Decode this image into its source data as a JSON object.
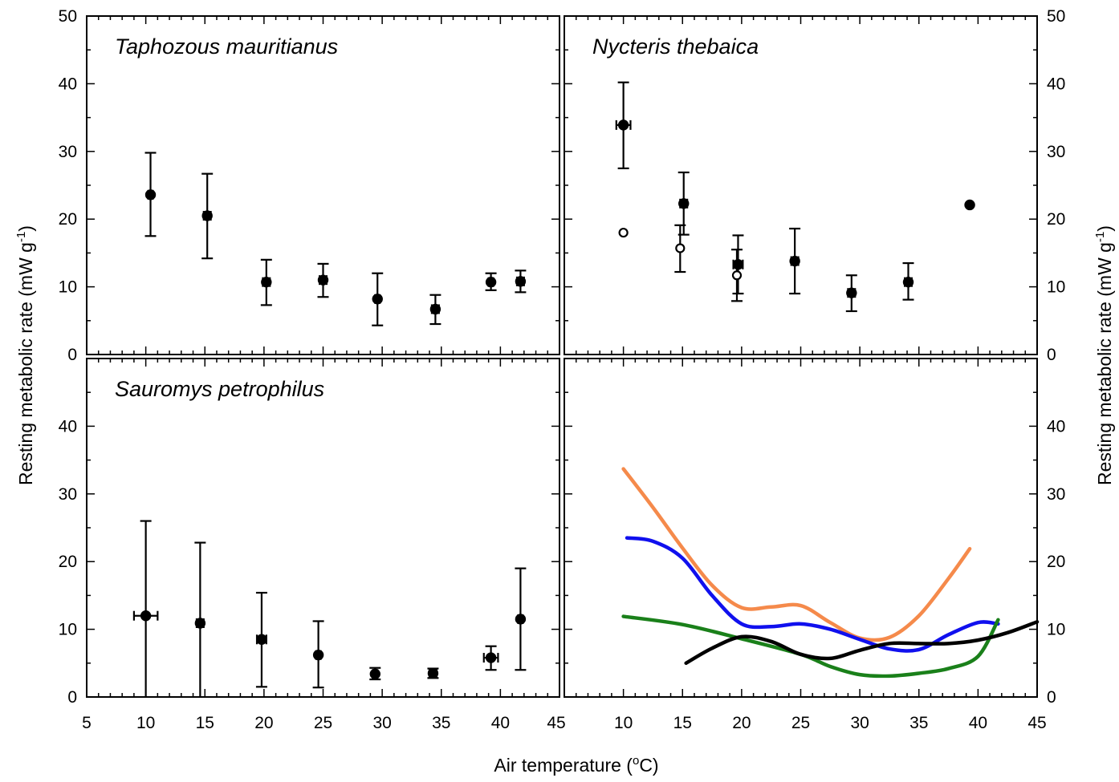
{
  "x_label": "Air temperature (",
  "x_label_sup": "o",
  "x_label_tail": "C)",
  "y_label": "Resting metabolic rate (mW g",
  "y_label_sup": "-1",
  "y_label_tail": ")",
  "x_ticks": [
    "5",
    "10",
    "15",
    "20",
    "25",
    "30",
    "35",
    "40",
    "45"
  ],
  "y_ticks": [
    "0",
    "10",
    "20",
    "30",
    "40",
    "50"
  ],
  "chart_data": [
    {
      "panel": "top-left",
      "type": "scatter",
      "title": "Taphozous mauritianus",
      "xlim": [
        5,
        45
      ],
      "ylim": [
        0,
        50
      ],
      "series": [
        {
          "marker": "filled-circle",
          "points": [
            {
              "x": 10.4,
              "y": 23.6,
              "ylo": 17.5,
              "yhi": 29.8,
              "xerr": 0.2
            },
            {
              "x": 15.2,
              "y": 20.5,
              "ylo": 14.2,
              "yhi": 26.7,
              "xerr": 0.3
            },
            {
              "x": 20.2,
              "y": 10.7,
              "ylo": 7.3,
              "yhi": 14.0,
              "xerr": 0.3
            },
            {
              "x": 25.0,
              "y": 11.0,
              "ylo": 8.5,
              "yhi": 13.4,
              "xerr": 0.3
            },
            {
              "x": 29.6,
              "y": 8.2,
              "ylo": 4.3,
              "yhi": 12.0,
              "xerr": 0.2
            },
            {
              "x": 34.5,
              "y": 6.7,
              "ylo": 4.5,
              "yhi": 8.8,
              "xerr": 0.3
            },
            {
              "x": 39.2,
              "y": 10.7,
              "ylo": 9.5,
              "yhi": 12.0,
              "xerr": 0.2
            },
            {
              "x": 41.7,
              "y": 10.8,
              "ylo": 9.2,
              "yhi": 12.4,
              "xerr": 0.3
            }
          ]
        }
      ]
    },
    {
      "panel": "top-right",
      "type": "scatter",
      "title": "Nycteris thebaica",
      "xlim": [
        5,
        45
      ],
      "ylim": [
        0,
        50
      ],
      "series": [
        {
          "marker": "filled-circle",
          "points": [
            {
              "x": 10.0,
              "y": 33.9,
              "ylo": 27.5,
              "yhi": 40.2,
              "xerr": 0.6
            },
            {
              "x": 15.1,
              "y": 22.3,
              "ylo": 17.7,
              "yhi": 26.9,
              "xerr": 0.3
            },
            {
              "x": 19.7,
              "y": 13.3,
              "ylo": 9.0,
              "yhi": 17.6,
              "xerr": 0.4
            },
            {
              "x": 24.5,
              "y": 13.8,
              "ylo": 9.0,
              "yhi": 18.6,
              "xerr": 0.3
            },
            {
              "x": 29.3,
              "y": 9.1,
              "ylo": 6.4,
              "yhi": 11.7,
              "xerr": 0.3
            },
            {
              "x": 34.1,
              "y": 10.7,
              "ylo": 8.1,
              "yhi": 13.5,
              "xerr": 0.3
            },
            {
              "x": 39.3,
              "y": 22.1,
              "ylo": 22.1,
              "yhi": 22.1,
              "xerr": 0
            }
          ]
        },
        {
          "marker": "open-circle",
          "points": [
            {
              "x": 10.0,
              "y": 18.0,
              "ylo": 18.0,
              "yhi": 18.0,
              "xerr": 0
            },
            {
              "x": 14.8,
              "y": 15.7,
              "ylo": 12.2,
              "yhi": 19.1,
              "xerr": 0
            },
            {
              "x": 19.6,
              "y": 11.7,
              "ylo": 7.9,
              "yhi": 15.5,
              "xerr": 0
            }
          ]
        }
      ]
    },
    {
      "panel": "bottom-left",
      "type": "scatter",
      "title": "Sauromys petrophilus",
      "xlim": [
        5,
        45
      ],
      "ylim": [
        0,
        50
      ],
      "series": [
        {
          "marker": "filled-circle",
          "points": [
            {
              "x": 10.0,
              "y": 12.0,
              "ylo": 0.0,
              "yhi": 26.0,
              "xerr": 1.0
            },
            {
              "x": 14.6,
              "y": 10.9,
              "ylo": 0.0,
              "yhi": 22.8,
              "xerr": 0.3
            },
            {
              "x": 19.8,
              "y": 8.5,
              "ylo": 1.5,
              "yhi": 15.4,
              "xerr": 0.4
            },
            {
              "x": 24.6,
              "y": 6.2,
              "ylo": 1.4,
              "yhi": 11.2,
              "xerr": 0.2
            },
            {
              "x": 29.4,
              "y": 3.4,
              "ylo": 2.6,
              "yhi": 4.3,
              "xerr": 0.2
            },
            {
              "x": 34.3,
              "y": 3.5,
              "ylo": 2.8,
              "yhi": 4.2,
              "xerr": 0.3
            },
            {
              "x": 39.2,
              "y": 5.8,
              "ylo": 4.0,
              "yhi": 7.5,
              "xerr": 0.6
            },
            {
              "x": 41.7,
              "y": 11.5,
              "ylo": 4.0,
              "yhi": 19.0,
              "xerr": 0.2
            }
          ]
        }
      ]
    },
    {
      "panel": "bottom-right",
      "type": "line",
      "title": "",
      "xlim": [
        5,
        45
      ],
      "ylim": [
        0,
        50
      ],
      "series": [
        {
          "color": "#f58a4b",
          "x": [
            10,
            12.5,
            15,
            17.5,
            20,
            22.5,
            25,
            27.5,
            30,
            32.5,
            35,
            37.5,
            39.3
          ],
          "y": [
            33.7,
            28.0,
            22.0,
            16.5,
            13.2,
            13.3,
            13.5,
            11.0,
            8.7,
            8.8,
            12.0,
            17.5,
            21.9
          ]
        },
        {
          "color": "#1010ee",
          "x": [
            10.3,
            12.5,
            15,
            17.5,
            20,
            22.5,
            25,
            27.5,
            30,
            32.5,
            35,
            37.5,
            40,
            41.7
          ],
          "y": [
            23.5,
            23.0,
            20.5,
            15.0,
            10.8,
            10.4,
            10.8,
            10.0,
            8.5,
            7.1,
            7.0,
            9.2,
            11.0,
            10.8
          ]
        },
        {
          "color": "#1a801a",
          "x": [
            10,
            15,
            20,
            25,
            27.5,
            30,
            32.5,
            35,
            37.5,
            40,
            41.7
          ],
          "y": [
            11.9,
            10.7,
            8.6,
            6.3,
            4.5,
            3.3,
            3.1,
            3.5,
            4.2,
            6.0,
            11.4
          ]
        },
        {
          "color": "#000000",
          "x": [
            15.3,
            17.5,
            20,
            22.5,
            25,
            27.5,
            30,
            32.5,
            35,
            37.5,
            40,
            42.5,
            45
          ],
          "y": [
            5.0,
            7.2,
            8.9,
            8.2,
            6.3,
            5.7,
            6.9,
            7.9,
            7.9,
            7.9,
            8.4,
            9.5,
            11.1
          ]
        }
      ]
    }
  ]
}
